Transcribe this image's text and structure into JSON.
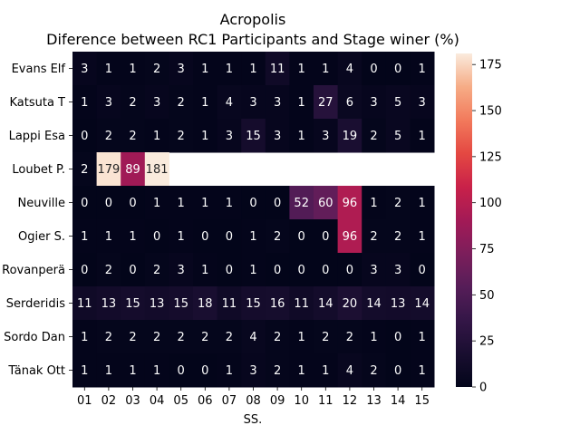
{
  "chart_data": {
    "type": "heatmap",
    "title": "Acropolis",
    "subtitle": "Diference between RC1 Participants and Stage winer (%)",
    "xlabel": "SS.",
    "ylabel": "",
    "x_categories": [
      "01",
      "02",
      "03",
      "04",
      "05",
      "06",
      "07",
      "08",
      "09",
      "10",
      "11",
      "12",
      "13",
      "14",
      "15"
    ],
    "y_categories": [
      "Evans  Elf",
      "Katsuta  T",
      "Lappi  Esa",
      "Loubet  P.",
      "Neuville",
      "Ogier  S.",
      "Rovanperä",
      "Serderidis",
      "Sordo  Dan",
      "Tänak  Ott"
    ],
    "values": [
      [
        3,
        1,
        1,
        2,
        3,
        1,
        1,
        1,
        11,
        1,
        1,
        4,
        0,
        0,
        1
      ],
      [
        1,
        3,
        2,
        3,
        2,
        1,
        4,
        3,
        3,
        1,
        27,
        6,
        3,
        5,
        3
      ],
      [
        0,
        2,
        2,
        1,
        2,
        1,
        3,
        15,
        3,
        1,
        3,
        19,
        2,
        5,
        1
      ],
      [
        2,
        179,
        89,
        181,
        null,
        null,
        null,
        null,
        null,
        null,
        null,
        null,
        null,
        null,
        null
      ],
      [
        0,
        0,
        0,
        1,
        1,
        1,
        1,
        0,
        0,
        52,
        60,
        96,
        1,
        2,
        1
      ],
      [
        1,
        1,
        1,
        0,
        1,
        0,
        0,
        1,
        2,
        0,
        0,
        96,
        2,
        2,
        1
      ],
      [
        0,
        2,
        0,
        2,
        3,
        1,
        0,
        1,
        0,
        0,
        0,
        0,
        3,
        3,
        0
      ],
      [
        11,
        13,
        15,
        13,
        15,
        18,
        11,
        15,
        16,
        11,
        14,
        20,
        14,
        13,
        14
      ],
      [
        1,
        2,
        2,
        2,
        2,
        2,
        2,
        4,
        2,
        1,
        2,
        2,
        1,
        0,
        1
      ],
      [
        1,
        1,
        1,
        1,
        0,
        0,
        1,
        3,
        2,
        1,
        1,
        4,
        2,
        0,
        1
      ]
    ],
    "colorbar": {
      "min": 0,
      "max": 181,
      "ticks": [
        0,
        25,
        50,
        75,
        100,
        125,
        150,
        175
      ],
      "colormap": "rocket"
    },
    "colors": {
      "high_annotation": "#262626",
      "low_annotation": "#ffffff"
    }
  }
}
